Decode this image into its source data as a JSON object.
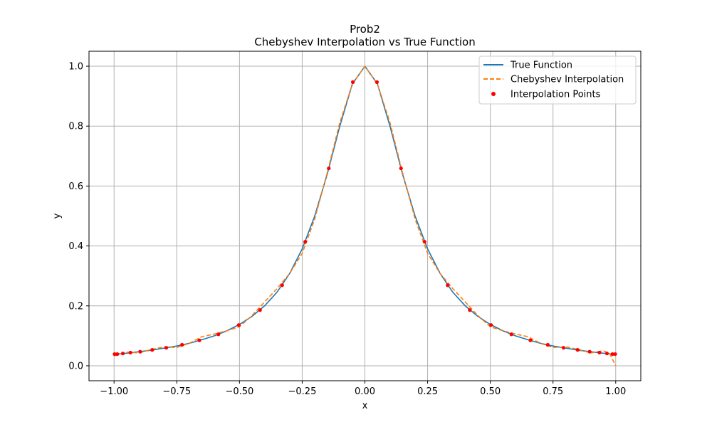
{
  "chart_data": {
    "type": "line",
    "title": "Prob2",
    "subtitle": "Chebyshev Interpolation vs True Function",
    "xlabel": "x",
    "ylabel": "y",
    "xlim": [
      -1.1,
      1.1
    ],
    "ylim": [
      -0.05,
      1.05
    ],
    "xticks": [
      -1.0,
      -0.75,
      -0.5,
      -0.25,
      0.0,
      0.25,
      0.5,
      0.75,
      1.0
    ],
    "xtick_labels": [
      "−1.00",
      "−0.75",
      "−0.50",
      "−0.25",
      "0.00",
      "0.25",
      "0.50",
      "0.75",
      "1.00"
    ],
    "yticks": [
      0.0,
      0.2,
      0.4,
      0.6,
      0.8,
      1.0
    ],
    "ytick_labels": [
      "0.0",
      "0.2",
      "0.4",
      "0.6",
      "0.8",
      "1.0"
    ],
    "grid": true,
    "legend_position": "top-right",
    "series": [
      {
        "name": "True Function",
        "style": "solid",
        "color": "#1f77b4",
        "x": [
          -1.0,
          -0.95,
          -0.9,
          -0.85,
          -0.8,
          -0.75,
          -0.7,
          -0.65,
          -0.6,
          -0.55,
          -0.5,
          -0.45,
          -0.4,
          -0.35,
          -0.3,
          -0.25,
          -0.2,
          -0.15,
          -0.1,
          -0.05,
          0.0,
          0.05,
          0.1,
          0.15,
          0.2,
          0.25,
          0.3,
          0.35,
          0.4,
          0.45,
          0.5,
          0.55,
          0.6,
          0.65,
          0.7,
          0.75,
          0.8,
          0.85,
          0.9,
          0.95,
          1.0
        ],
        "y": [
          0.038,
          0.042,
          0.047,
          0.052,
          0.059,
          0.066,
          0.075,
          0.087,
          0.1,
          0.117,
          0.138,
          0.165,
          0.2,
          0.246,
          0.308,
          0.39,
          0.5,
          0.64,
          0.8,
          0.941,
          1.0,
          0.941,
          0.8,
          0.64,
          0.5,
          0.39,
          0.308,
          0.246,
          0.2,
          0.165,
          0.138,
          0.117,
          0.1,
          0.087,
          0.075,
          0.066,
          0.059,
          0.052,
          0.047,
          0.042,
          0.038
        ]
      },
      {
        "name": "Chebyshev Interpolation",
        "style": "dashed",
        "color": "#ff7f0e",
        "x": [
          -1.0,
          -0.95,
          -0.9,
          -0.85,
          -0.8,
          -0.75,
          -0.7,
          -0.65,
          -0.6,
          -0.55,
          -0.5,
          -0.45,
          -0.4,
          -0.35,
          -0.3,
          -0.25,
          -0.2,
          -0.15,
          -0.1,
          -0.05,
          0.0,
          0.05,
          0.1,
          0.15,
          0.2,
          0.25,
          0.3,
          0.35,
          0.4,
          0.45,
          0.5,
          0.55,
          0.6,
          0.65,
          0.7,
          0.75,
          0.8,
          0.85,
          0.9,
          0.95,
          0.975,
          1.0
        ],
        "y": [
          0.033,
          0.045,
          0.043,
          0.055,
          0.063,
          0.061,
          0.075,
          0.097,
          0.106,
          0.117,
          0.13,
          0.168,
          0.213,
          0.258,
          0.308,
          0.375,
          0.49,
          0.645,
          0.812,
          0.94,
          1.0,
          0.94,
          0.812,
          0.645,
          0.49,
          0.375,
          0.308,
          0.258,
          0.213,
          0.168,
          0.13,
          0.117,
          0.106,
          0.097,
          0.075,
          0.061,
          0.063,
          0.055,
          0.043,
          0.05,
          0.042,
          0.0
        ]
      }
    ],
    "scatter": {
      "name": "Interpolation Points",
      "color": "#ff0000",
      "x": [
        -0.998,
        -0.987,
        -0.965,
        -0.935,
        -0.896,
        -0.848,
        -0.792,
        -0.729,
        -0.66,
        -0.584,
        -0.503,
        -0.418,
        -0.33,
        -0.238,
        -0.144,
        -0.048,
        0.048,
        0.144,
        0.238,
        0.33,
        0.418,
        0.503,
        0.584,
        0.66,
        0.729,
        0.792,
        0.848,
        0.896,
        0.935,
        0.965,
        0.987,
        0.998
      ],
      "y": [
        0.039,
        0.039,
        0.041,
        0.044,
        0.047,
        0.053,
        0.06,
        0.07,
        0.085,
        0.105,
        0.136,
        0.186,
        0.269,
        0.414,
        0.659,
        0.947,
        0.947,
        0.659,
        0.414,
        0.269,
        0.186,
        0.136,
        0.105,
        0.085,
        0.07,
        0.06,
        0.053,
        0.047,
        0.044,
        0.041,
        0.039,
        0.039
      ]
    }
  }
}
